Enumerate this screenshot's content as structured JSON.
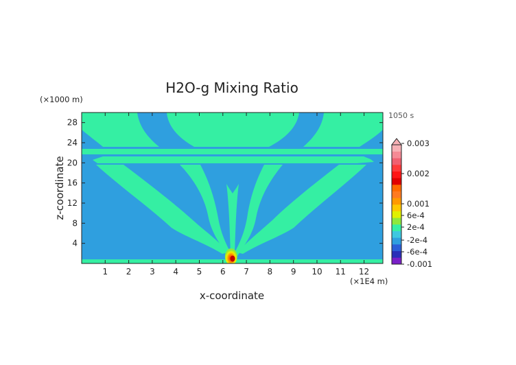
{
  "chart_data": {
    "type": "heatmap",
    "title": "H2O-g Mixing Ratio",
    "xlabel": "x-coordinate",
    "ylabel": "z-coordinate",
    "x_unit": "(×1E4 m)",
    "y_unit": "(×1000 m)",
    "time_label": "1050 s",
    "xlim": [
      0,
      12.8
    ],
    "ylim": [
      0,
      30
    ],
    "x_ticks": [
      1,
      2,
      3,
      4,
      5,
      6,
      7,
      8,
      9,
      10,
      11,
      12
    ],
    "y_ticks": [
      4,
      8,
      12,
      16,
      20,
      24,
      28
    ],
    "x_tick_labels": [
      "1",
      "2",
      "3",
      "4",
      "5",
      "6",
      "7",
      "8",
      "9",
      "10",
      "11",
      "12"
    ],
    "y_tick_labels": [
      "4",
      "8",
      "12",
      "16",
      "20",
      "24",
      "28"
    ],
    "background_level_color": "#2f9fdf",
    "plume_level_color": "#35efa3",
    "source": {
      "x": 6.35,
      "z": 0.8
    },
    "colorbar": {
      "colors": [
        "#7a1fc8",
        "#2a2fb8",
        "#2a5fd8",
        "#2f9fdf",
        "#3ec8e0",
        "#35efa3",
        "#8ee83c",
        "#e0f000",
        "#ffc800",
        "#ff9900",
        "#ff7a20",
        "#ff6a00",
        "#e00000",
        "#ff1515",
        "#ff3a3a",
        "#f06070",
        "#f58a95",
        "#f7b0b5"
      ],
      "tick_labels": [
        "0.003",
        "0.002",
        "0.001",
        "6e-4",
        "2e-4",
        "-2e-4",
        "-6e-4",
        "-0.001"
      ]
    }
  }
}
